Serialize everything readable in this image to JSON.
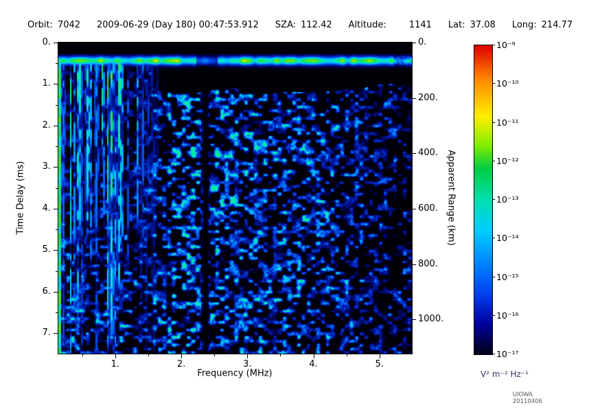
{
  "header": {
    "items": [
      {
        "label": "Orbit:",
        "value": "7042"
      },
      {
        "label": "",
        "value": "2009-06-29 (Day 180) 00:47:53.912"
      },
      {
        "label": "SZA:",
        "value": "112.42"
      },
      {
        "label": "Altitude:",
        "value": "1141"
      },
      {
        "label": "Lat:",
        "value": "37.08"
      },
      {
        "label": "Long:",
        "value": "214.77"
      }
    ]
  },
  "chart_data": {
    "type": "heatmap",
    "subtype": "radar-sounder-ionogram",
    "title": "",
    "xlabel": "Frequency (MHz)",
    "ylabel_left": "Time Delay (ms)",
    "ylabel_right": "Apparent Range (km)",
    "xlim": [
      0.14,
      5.49
    ],
    "ylim_ms": [
      0,
      7.49
    ],
    "y_axis_inverted": true,
    "x_ticks": [
      1,
      2,
      3,
      4,
      5
    ],
    "x_tick_labels": [
      "1.",
      "2.",
      "3.",
      "4.",
      "5."
    ],
    "y_ticks_ms": [
      0,
      1,
      2,
      3,
      4,
      5,
      6,
      7
    ],
    "y_tick_labels": [
      "0.",
      "1.",
      "2.",
      "3.",
      "4.",
      "5.",
      "6.",
      "7."
    ],
    "right_ticks_km": [
      0,
      200,
      400,
      600,
      800,
      1000
    ],
    "right_tick_labels": [
      "0.",
      "200.",
      "400.",
      "600.",
      "800.",
      "1000."
    ],
    "range_km_per_ms": 150,
    "grid": false,
    "colorbar": {
      "scale": "log",
      "max_label": "10⁻⁹",
      "min_label": "10⁻¹⁷",
      "tick_labels": [
        "10⁻⁹",
        "10⁻¹⁰",
        "10⁻¹¹",
        "10⁻¹²",
        "10⁻¹³",
        "10⁻¹⁴",
        "10⁻¹⁵",
        "10⁻¹⁶",
        "10⁻¹⁷"
      ],
      "unit": "V² m⁻² Hz⁻¹",
      "top_color": "#dd0000",
      "bottom_color": "#000018"
    },
    "features": {
      "background": "black",
      "surface_echo_band_ms": 0.43,
      "surface_echo_halfwidth_ms": 0.09,
      "ionospheric_striations_below_mhz": 1.6,
      "dark_column_mhz": 2.36,
      "noise_floor_onset_ms": 0.95,
      "description": "Radar sounder ionogram: bright green surface-echo band near 0.43 ms spanning all frequencies; dense vertical cyan/green plasma-oscillation striations below ~1.6 MHz extending to 7.5 ms; diffuse blue speckled noise floor starting near 1 ms for higher frequencies, fading toward 5.5 MHz; narrow dark vertical column near 2.36 MHz; black region above the noise floor onset."
    }
  },
  "credit": "UIOWA 20110406"
}
